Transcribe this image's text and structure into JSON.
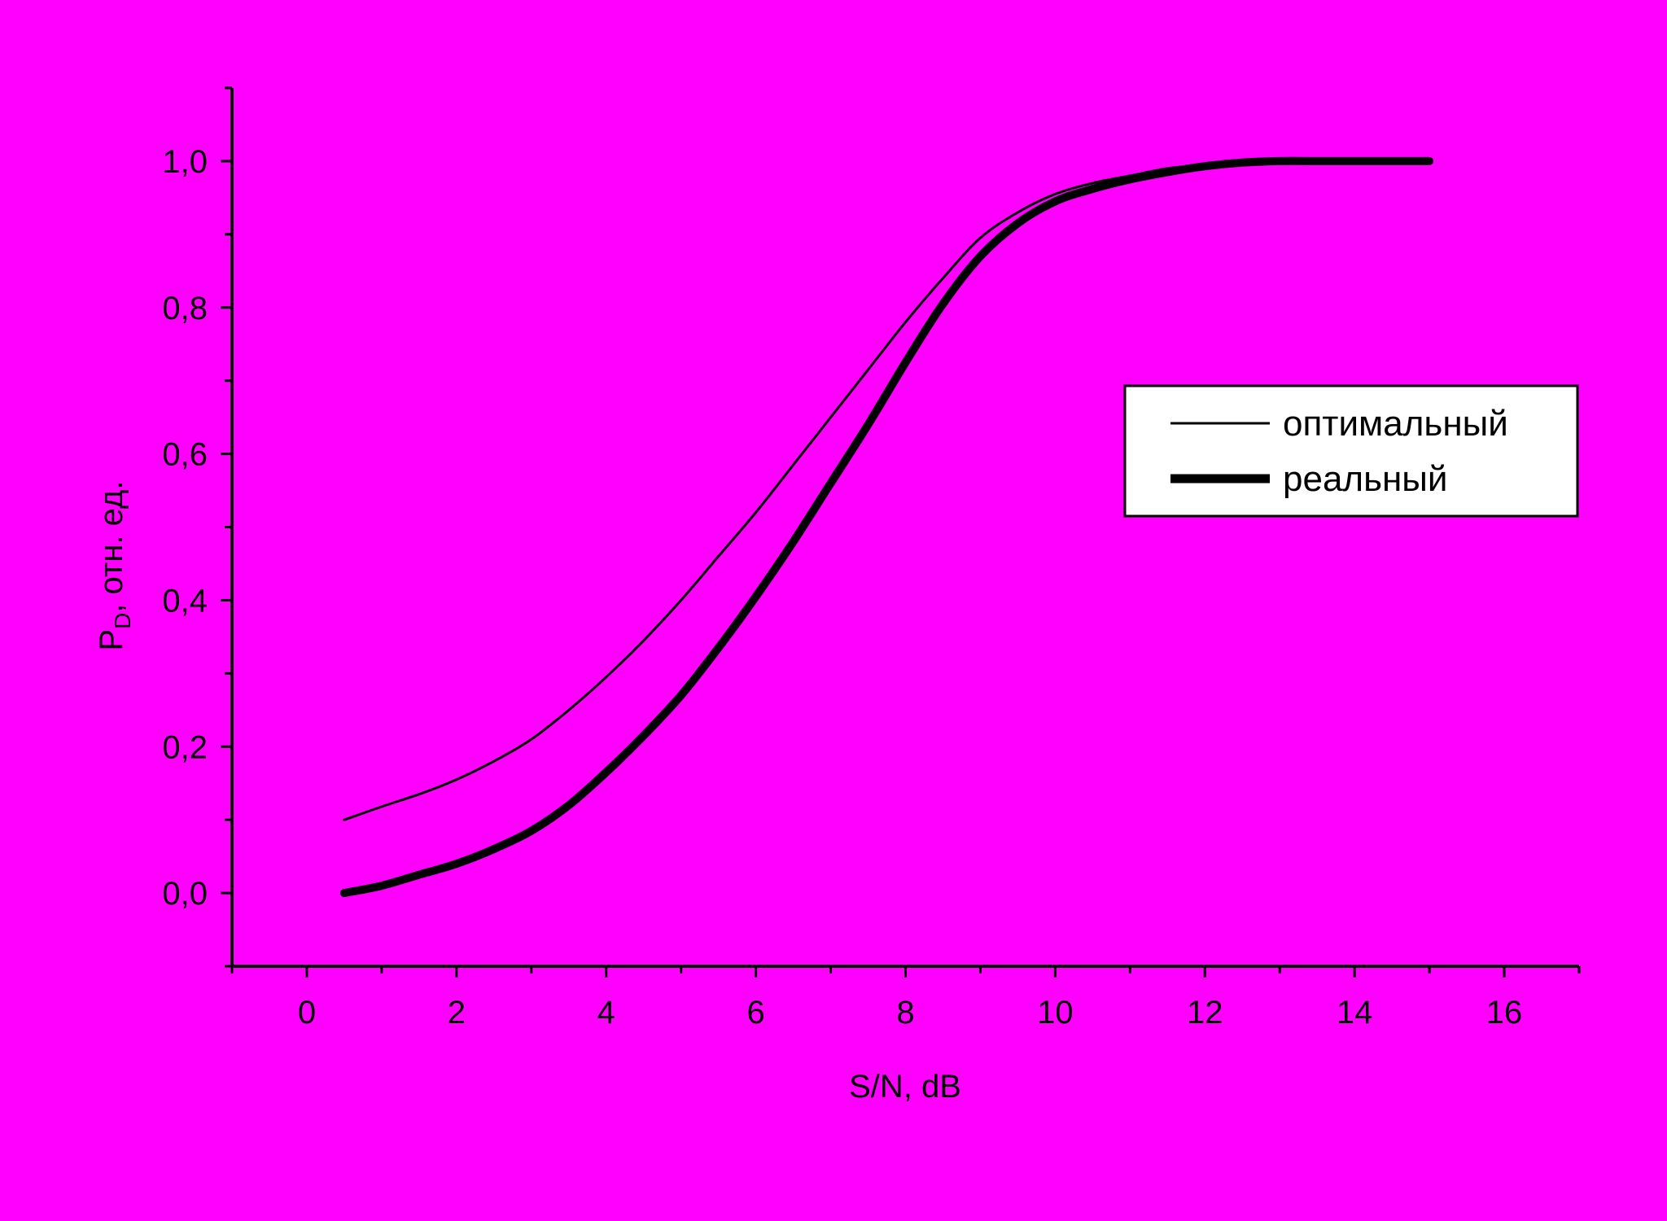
{
  "background_color": "#ff00ff",
  "chart_data": {
    "type": "line",
    "xlabel": "S/N, dB",
    "ylabel_main": "P",
    "ylabel_sub": "D",
    "ylabel_rest": ", отн. ед.",
    "xlim": [
      -1,
      17
    ],
    "ylim": [
      -0.1,
      1.1
    ],
    "x_ticks": [
      0,
      2,
      4,
      6,
      8,
      10,
      12,
      14,
      16
    ],
    "x_tick_labels": [
      "0",
      "2",
      "4",
      "6",
      "8",
      "10",
      "12",
      "14",
      "16"
    ],
    "y_ticks": [
      0.0,
      0.2,
      0.4,
      0.6,
      0.8,
      1.0
    ],
    "y_tick_labels": [
      "0,0",
      "0,2",
      "0,4",
      "0,6",
      "0,8",
      "1,0"
    ],
    "grid": false,
    "legend_position": "right, middle",
    "series": [
      {
        "name": "оптимальный",
        "color": "#000000",
        "style": "thin",
        "x": [
          0.5,
          1,
          1.5,
          2,
          2.5,
          3,
          3.5,
          4,
          4.5,
          5,
          5.5,
          6,
          6.5,
          7,
          7.5,
          8,
          8.5,
          9,
          9.5,
          10,
          10.5,
          11,
          11.5,
          12,
          12.5,
          13,
          13.5,
          14,
          14.5,
          15
        ],
        "y": [
          0.1,
          0.118,
          0.135,
          0.155,
          0.18,
          0.21,
          0.25,
          0.295,
          0.345,
          0.4,
          0.46,
          0.52,
          0.585,
          0.65,
          0.715,
          0.78,
          0.84,
          0.895,
          0.93,
          0.955,
          0.97,
          0.98,
          0.99,
          0.995,
          1.0,
          1.0,
          1.0,
          1.0,
          1.0,
          1.0
        ]
      },
      {
        "name": "реальный",
        "color": "#000000",
        "style": "thick",
        "x": [
          0.5,
          1,
          1.5,
          2,
          2.5,
          3,
          3.5,
          4,
          4.5,
          5,
          5.5,
          6,
          6.5,
          7,
          7.5,
          8,
          8.5,
          9,
          9.5,
          10,
          10.5,
          11,
          11.5,
          12,
          12.5,
          13,
          13.5,
          14,
          14.5,
          15
        ],
        "y": [
          0.0,
          0.01,
          0.025,
          0.04,
          0.06,
          0.085,
          0.12,
          0.165,
          0.215,
          0.27,
          0.335,
          0.405,
          0.48,
          0.56,
          0.64,
          0.725,
          0.805,
          0.87,
          0.915,
          0.945,
          0.962,
          0.975,
          0.985,
          0.993,
          0.998,
          1.0,
          1.0,
          1.0,
          1.0,
          1.0
        ]
      }
    ]
  }
}
